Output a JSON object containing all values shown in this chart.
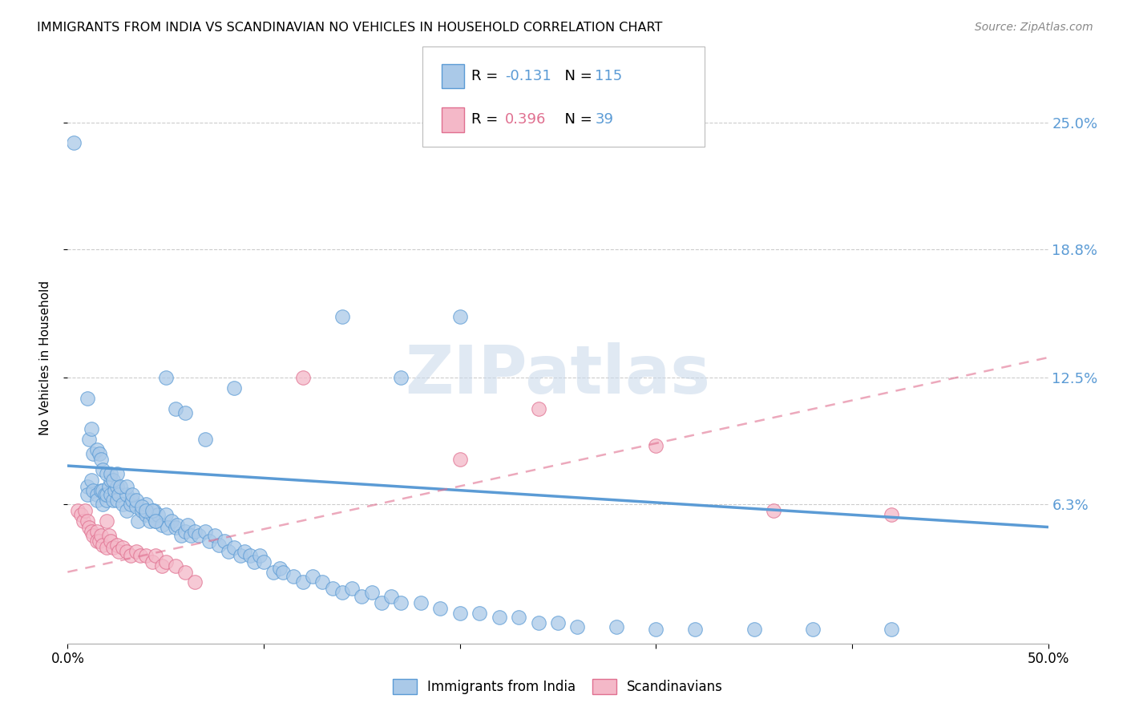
{
  "title": "IMMIGRANTS FROM INDIA VS SCANDINAVIAN NO VEHICLES IN HOUSEHOLD CORRELATION CHART",
  "source": "Source: ZipAtlas.com",
  "ylabel": "No Vehicles in Household",
  "ytick_labels": [
    "6.3%",
    "12.5%",
    "18.8%",
    "25.0%"
  ],
  "ytick_values": [
    0.063,
    0.125,
    0.188,
    0.25
  ],
  "xlim": [
    0.0,
    0.5
  ],
  "ylim": [
    -0.005,
    0.275
  ],
  "india_color": "#aac9e8",
  "india_line_color": "#5b9bd5",
  "scand_color": "#f4b8c8",
  "scand_line_color": "#e07090",
  "watermark_text": "ZIPatlas",
  "india_line_x0": 0.0,
  "india_line_y0": 0.082,
  "india_line_x1": 0.5,
  "india_line_y1": 0.052,
  "scand_line_x0": 0.0,
  "scand_line_y0": 0.03,
  "scand_line_x1": 0.5,
  "scand_line_y1": 0.135,
  "india_x": [
    0.01,
    0.01,
    0.012,
    0.013,
    0.015,
    0.015,
    0.017,
    0.018,
    0.018,
    0.019,
    0.02,
    0.02,
    0.021,
    0.022,
    0.022,
    0.023,
    0.024,
    0.025,
    0.025,
    0.026,
    0.028,
    0.03,
    0.03,
    0.032,
    0.033,
    0.035,
    0.036,
    0.038,
    0.04,
    0.04,
    0.042,
    0.043,
    0.044,
    0.045,
    0.046,
    0.048,
    0.05,
    0.051,
    0.053,
    0.055,
    0.056,
    0.058,
    0.06,
    0.061,
    0.063,
    0.065,
    0.067,
    0.07,
    0.072,
    0.075,
    0.077,
    0.08,
    0.082,
    0.085,
    0.088,
    0.09,
    0.093,
    0.095,
    0.098,
    0.1,
    0.105,
    0.108,
    0.11,
    0.115,
    0.12,
    0.125,
    0.13,
    0.135,
    0.14,
    0.145,
    0.15,
    0.155,
    0.16,
    0.165,
    0.17,
    0.18,
    0.19,
    0.2,
    0.21,
    0.22,
    0.23,
    0.24,
    0.25,
    0.26,
    0.28,
    0.3,
    0.32,
    0.35,
    0.38,
    0.42,
    0.01,
    0.011,
    0.012,
    0.013,
    0.015,
    0.016,
    0.017,
    0.018,
    0.02,
    0.022,
    0.023,
    0.025,
    0.027,
    0.03,
    0.033,
    0.035,
    0.038,
    0.04,
    0.043,
    0.045,
    0.05,
    0.055,
    0.06,
    0.07,
    0.085,
    0.003,
    0.14,
    0.17,
    0.2
  ],
  "india_y": [
    0.072,
    0.068,
    0.075,
    0.07,
    0.068,
    0.065,
    0.07,
    0.063,
    0.07,
    0.068,
    0.065,
    0.068,
    0.072,
    0.068,
    0.075,
    0.065,
    0.07,
    0.072,
    0.065,
    0.068,
    0.063,
    0.068,
    0.06,
    0.063,
    0.065,
    0.062,
    0.055,
    0.06,
    0.058,
    0.063,
    0.055,
    0.058,
    0.06,
    0.055,
    0.058,
    0.053,
    0.058,
    0.052,
    0.055,
    0.052,
    0.053,
    0.048,
    0.05,
    0.053,
    0.048,
    0.05,
    0.048,
    0.05,
    0.045,
    0.048,
    0.043,
    0.045,
    0.04,
    0.042,
    0.038,
    0.04,
    0.038,
    0.035,
    0.038,
    0.035,
    0.03,
    0.032,
    0.03,
    0.028,
    0.025,
    0.028,
    0.025,
    0.022,
    0.02,
    0.022,
    0.018,
    0.02,
    0.015,
    0.018,
    0.015,
    0.015,
    0.012,
    0.01,
    0.01,
    0.008,
    0.008,
    0.005,
    0.005,
    0.003,
    0.003,
    0.002,
    0.002,
    0.002,
    0.002,
    0.002,
    0.115,
    0.095,
    0.1,
    0.088,
    0.09,
    0.088,
    0.085,
    0.08,
    0.078,
    0.078,
    0.075,
    0.078,
    0.072,
    0.072,
    0.068,
    0.065,
    0.062,
    0.06,
    0.06,
    0.055,
    0.125,
    0.11,
    0.108,
    0.095,
    0.12,
    0.24,
    0.155,
    0.125,
    0.155
  ],
  "scand_x": [
    0.005,
    0.007,
    0.008,
    0.009,
    0.01,
    0.011,
    0.012,
    0.013,
    0.015,
    0.015,
    0.016,
    0.017,
    0.018,
    0.02,
    0.02,
    0.021,
    0.022,
    0.023,
    0.025,
    0.026,
    0.028,
    0.03,
    0.032,
    0.035,
    0.037,
    0.04,
    0.043,
    0.045,
    0.048,
    0.05,
    0.055,
    0.06,
    0.065,
    0.12,
    0.2,
    0.24,
    0.3,
    0.36,
    0.42
  ],
  "scand_y": [
    0.06,
    0.058,
    0.055,
    0.06,
    0.055,
    0.052,
    0.05,
    0.048,
    0.05,
    0.045,
    0.045,
    0.048,
    0.043,
    0.055,
    0.042,
    0.048,
    0.045,
    0.042,
    0.043,
    0.04,
    0.042,
    0.04,
    0.038,
    0.04,
    0.038,
    0.038,
    0.035,
    0.038,
    0.033,
    0.035,
    0.033,
    0.03,
    0.025,
    0.125,
    0.085,
    0.11,
    0.092,
    0.06,
    0.058
  ]
}
